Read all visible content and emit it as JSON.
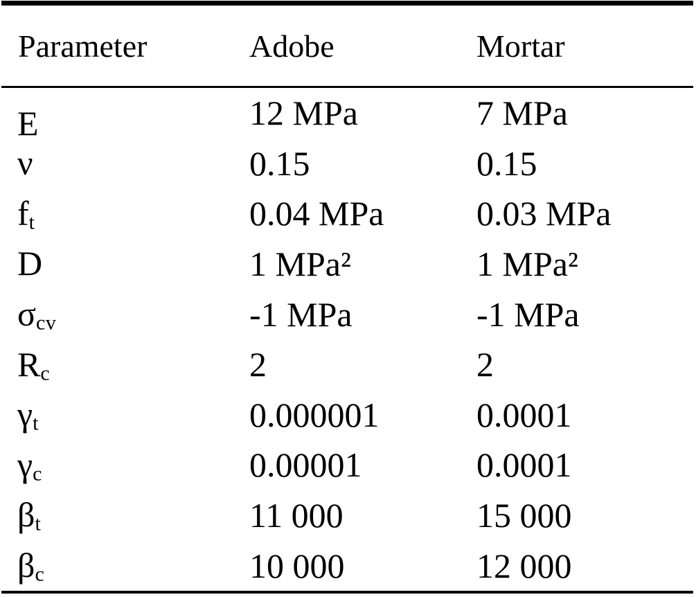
{
  "table": {
    "headers": {
      "parameter": "Parameter",
      "adobe": "Adobe",
      "mortar": "Mortar"
    },
    "rows": [
      {
        "param": {
          "base": "E",
          "sub": ""
        },
        "adobe": "12 MPa",
        "mortar": "7 MPa"
      },
      {
        "param": {
          "base": "ν",
          "sub": ""
        },
        "adobe": "0.15",
        "mortar": "0.15"
      },
      {
        "param": {
          "base": "f",
          "sub": "t"
        },
        "adobe": "0.04 MPa",
        "mortar": "0.03 MPa"
      },
      {
        "param": {
          "base": "D",
          "sub": ""
        },
        "adobe": "1 MPa²",
        "mortar": "1 MPa²"
      },
      {
        "param": {
          "base": "σ",
          "sub": "cv"
        },
        "adobe": "-1 MPa",
        "mortar": "-1 MPa"
      },
      {
        "param": {
          "base": "R",
          "sub": "c"
        },
        "adobe": "2",
        "mortar": "2"
      },
      {
        "param": {
          "base": "γ",
          "sub": "t"
        },
        "adobe": "0.000001",
        "mortar": "0.0001"
      },
      {
        "param": {
          "base": "γ",
          "sub": "c"
        },
        "adobe": "0.00001",
        "mortar": "0.0001"
      },
      {
        "param": {
          "base": "β",
          "sub": "t"
        },
        "adobe": "11 000",
        "mortar": "15 000"
      },
      {
        "param": {
          "base": "β",
          "sub": "c"
        },
        "adobe": "10 000",
        "mortar": "12 000"
      }
    ],
    "colors": {
      "text": "#000000",
      "background": "#ffffff",
      "rule": "#000000"
    }
  }
}
